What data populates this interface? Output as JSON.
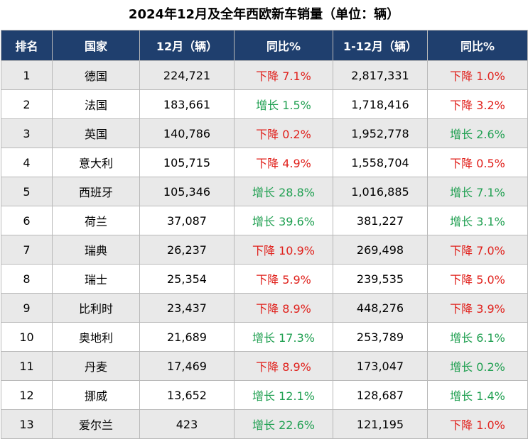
{
  "title": "2024年12月及全年西欧新车销量（单位：辆）",
  "colors": {
    "header_bg": "#1f3f6e",
    "down": "#e0201b",
    "up": "#21a052",
    "row_shade": "#e9e9e9"
  },
  "headers": [
    "排名",
    "国家",
    "12月（辆）",
    "同比%",
    "1-12月（辆）",
    "同比%"
  ],
  "rows": [
    {
      "rank": "1",
      "country": "德国",
      "dec": "224,721",
      "dec_yoy": "下降 7.1%",
      "dec_dir": "down",
      "ytd": "2,817,331",
      "ytd_yoy": "下降 1.0%",
      "ytd_dir": "down"
    },
    {
      "rank": "2",
      "country": "法国",
      "dec": "183,661",
      "dec_yoy": "增长 1.5%",
      "dec_dir": "up",
      "ytd": "1,718,416",
      "ytd_yoy": "下降 3.2%",
      "ytd_dir": "down"
    },
    {
      "rank": "3",
      "country": "英国",
      "dec": "140,786",
      "dec_yoy": "下降 0.2%",
      "dec_dir": "down",
      "ytd": "1,952,778",
      "ytd_yoy": "增长 2.6%",
      "ytd_dir": "up"
    },
    {
      "rank": "4",
      "country": "意大利",
      "dec": "105,715",
      "dec_yoy": "下降 4.9%",
      "dec_dir": "down",
      "ytd": "1,558,704",
      "ytd_yoy": "下降 0.5%",
      "ytd_dir": "down"
    },
    {
      "rank": "5",
      "country": "西班牙",
      "dec": "105,346",
      "dec_yoy": "增长 28.8%",
      "dec_dir": "up",
      "ytd": "1,016,885",
      "ytd_yoy": "增长 7.1%",
      "ytd_dir": "up"
    },
    {
      "rank": "6",
      "country": "荷兰",
      "dec": "37,087",
      "dec_yoy": "增长 39.6%",
      "dec_dir": "up",
      "ytd": "381,227",
      "ytd_yoy": "增长 3.1%",
      "ytd_dir": "up"
    },
    {
      "rank": "7",
      "country": "瑞典",
      "dec": "26,237",
      "dec_yoy": "下降 10.9%",
      "dec_dir": "down",
      "ytd": "269,498",
      "ytd_yoy": "下降 7.0%",
      "ytd_dir": "down"
    },
    {
      "rank": "8",
      "country": "瑞士",
      "dec": "25,354",
      "dec_yoy": "下降 5.9%",
      "dec_dir": "down",
      "ytd": "239,535",
      "ytd_yoy": "下降 5.0%",
      "ytd_dir": "down"
    },
    {
      "rank": "9",
      "country": "比利时",
      "dec": "23,437",
      "dec_yoy": "下降 8.9%",
      "dec_dir": "down",
      "ytd": "448,276",
      "ytd_yoy": "下降 3.9%",
      "ytd_dir": "down"
    },
    {
      "rank": "10",
      "country": "奥地利",
      "dec": "21,689",
      "dec_yoy": "增长 17.3%",
      "dec_dir": "up",
      "ytd": "253,789",
      "ytd_yoy": "增长 6.1%",
      "ytd_dir": "up"
    },
    {
      "rank": "11",
      "country": "丹麦",
      "dec": "17,469",
      "dec_yoy": "下降 8.9%",
      "dec_dir": "down",
      "ytd": "173,047",
      "ytd_yoy": "增长 0.2%",
      "ytd_dir": "up"
    },
    {
      "rank": "12",
      "country": "挪威",
      "dec": "13,652",
      "dec_yoy": "增长 12.1%",
      "dec_dir": "up",
      "ytd": "128,687",
      "ytd_yoy": "增长 1.4%",
      "ytd_dir": "up"
    },
    {
      "rank": "13",
      "country": "爱尔兰",
      "dec": "423",
      "dec_yoy": "增长 22.6%",
      "dec_dir": "up",
      "ytd": "121,195",
      "ytd_yoy": "下降 1.0%",
      "ytd_dir": "down"
    }
  ]
}
